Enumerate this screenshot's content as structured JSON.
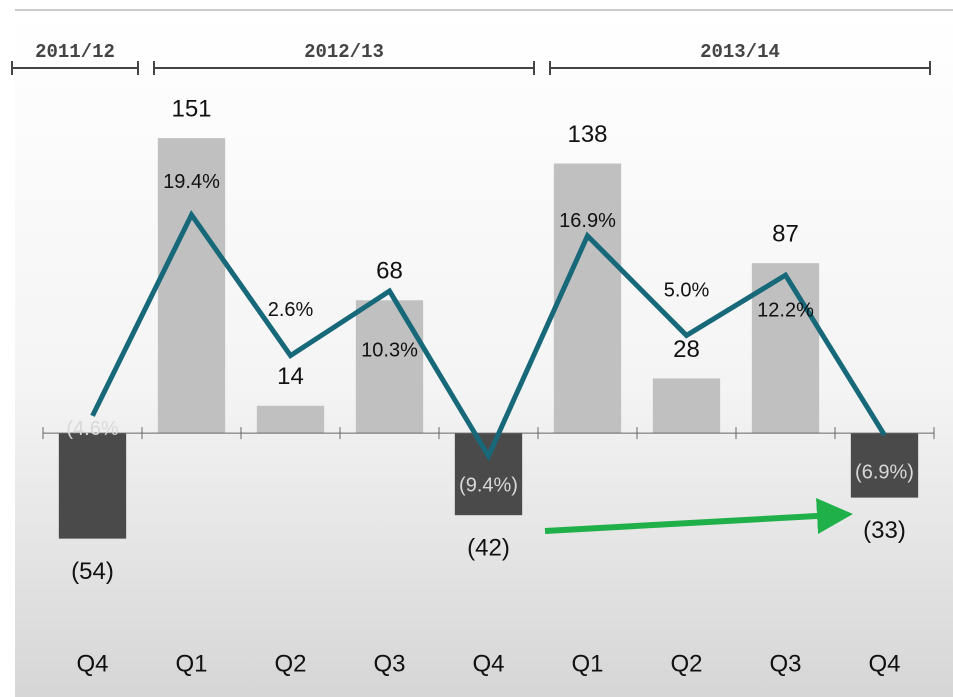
{
  "chart_data": {
    "type": "bar-line",
    "categories": [
      "Q4",
      "Q1",
      "Q2",
      "Q3",
      "Q4",
      "Q1",
      "Q2",
      "Q3",
      "Q4"
    ],
    "groups": [
      {
        "label": "2011/12",
        "span": 1
      },
      {
        "label": "2012/13",
        "span": 4
      },
      {
        "label": "2013/14",
        "span": 4
      }
    ],
    "series": [
      {
        "type": "bar",
        "color": "#c0c0c0",
        "negative_color": "#4a4a4a",
        "values": [
          -54,
          151,
          14,
          68,
          -42,
          138,
          28,
          87,
          -33
        ],
        "value_labels": [
          "(54)",
          "151",
          "14",
          "68",
          "(42)",
          "138",
          "28",
          "87",
          "(33)"
        ]
      },
      {
        "type": "line",
        "axis": "y2",
        "color": "#17697a",
        "values": [
          -4.6,
          19.4,
          2.6,
          10.3,
          -9.4,
          16.9,
          5.0,
          12.2,
          -6.9
        ],
        "value_labels": [
          "(4.6%",
          "19.4%",
          "2.6%",
          "10.3%",
          "(9.4%)",
          "16.9%",
          "5.0%",
          "12.2%",
          "(6.9%)"
        ]
      }
    ],
    "ylim": [
      -100,
      170
    ],
    "y2lim": [
      -30,
      33
    ]
  }
}
